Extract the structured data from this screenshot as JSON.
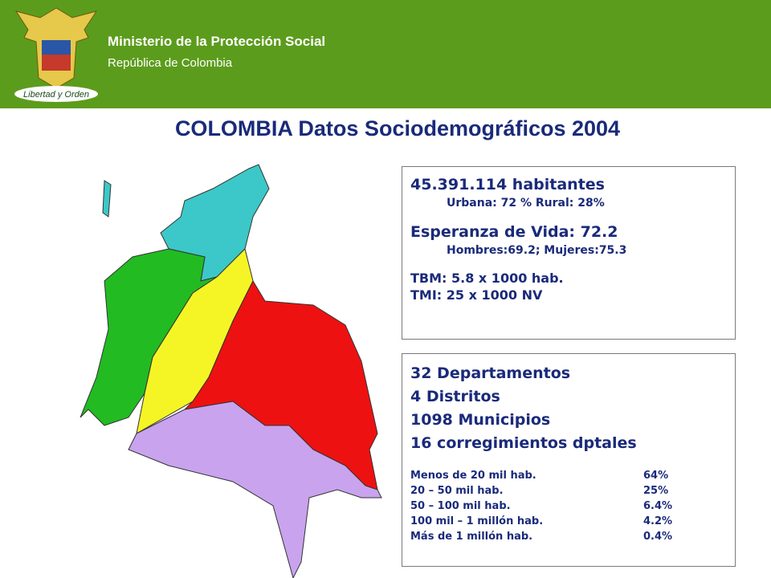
{
  "header": {
    "title": "Ministerio de la Protección Social",
    "subtitle": "República de Colombia",
    "emblem_text": "Libertad y Orden"
  },
  "title": "COLOMBIA Datos Sociodemográficos 2004",
  "population_box": {
    "population": "45.391.114 habitantes",
    "urban_rural": "Urbana: 72 % Rural: 28%",
    "life_expectancy": "Esperanza de Vida: 72.2",
    "life_by_sex": "Hombres:69.2;  Mujeres:75.3",
    "tbm": "TBM: 5.8 x 1000 hab.",
    "tmi": "TMI: 25 x 1000 NV"
  },
  "admin_box": {
    "lines": [
      "32 Departamentos",
      "4 Distritos",
      "1098 Municipios",
      "16 corregimientos dptales"
    ],
    "rows": [
      [
        "Menos de 20 mil hab.",
        "64%"
      ],
      [
        "20 – 50 mil hab.",
        "25%"
      ],
      [
        "50 – 100 mil hab.",
        "6.4%"
      ],
      [
        "100 mil – 1 millón hab.",
        "4.2%"
      ],
      [
        "Más de 1 millón hab.",
        "0.4%"
      ]
    ]
  }
}
